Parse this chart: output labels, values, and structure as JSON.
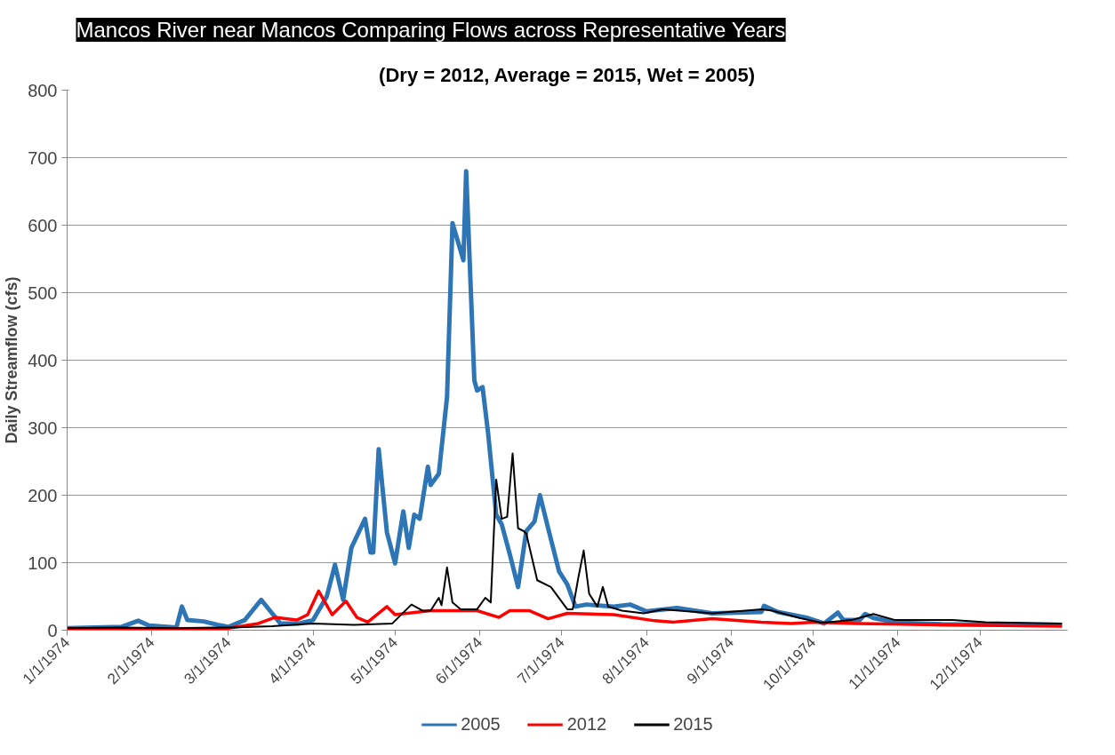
{
  "chart_data": {
    "type": "line",
    "title": "Mancos River near Mancos Comparing Flows across Representative Years",
    "subtitle": "(Dry = 2012, Average = 2015, Wet = 2005)",
    "ylabel": "Daily Streamflow (cfs)",
    "xlim": [
      "1974-01-01",
      "1975-01-02"
    ],
    "ylim": [
      0,
      800
    ],
    "yticks": [
      0,
      100,
      200,
      300,
      400,
      500,
      600,
      700,
      800
    ],
    "xticks": [
      {
        "value": "1974-01-01",
        "label": "1/1/1974"
      },
      {
        "value": "1974-02-01",
        "label": "2/1/1974"
      },
      {
        "value": "1974-03-01",
        "label": "3/1/1974"
      },
      {
        "value": "1974-04-01",
        "label": "4/1/1974"
      },
      {
        "value": "1974-05-01",
        "label": "5/1/1974"
      },
      {
        "value": "1974-06-01",
        "label": "6/1/1974"
      },
      {
        "value": "1974-07-01",
        "label": "7/1/1974"
      },
      {
        "value": "1974-08-01",
        "label": "8/1/1974"
      },
      {
        "value": "1974-09-01",
        "label": "9/1/1974"
      },
      {
        "value": "1974-10-01",
        "label": "10/1/1974"
      },
      {
        "value": "1974-11-01",
        "label": "11/1/1974"
      },
      {
        "value": "1974-12-01",
        "label": "12/1/1974"
      }
    ],
    "grid": "y",
    "legend": "bottom",
    "marker": "none",
    "line_style": "solid",
    "series": [
      {
        "name": "2005",
        "color": "#2e75b6",
        "x": [
          "1974-01-01",
          "1974-01-11",
          "1974-01-21",
          "1974-01-27",
          "1974-01-31",
          "1974-02-10",
          "1974-02-12",
          "1974-02-14",
          "1974-02-20",
          "1974-02-25",
          "1974-03-01",
          "1974-03-07",
          "1974-03-13",
          "1974-03-17",
          "1974-03-20",
          "1974-03-27",
          "1974-04-01",
          "1974-04-06",
          "1974-04-09",
          "1974-04-12",
          "1974-04-15",
          "1974-04-20",
          "1974-04-22",
          "1974-04-23",
          "1974-04-25",
          "1974-04-28",
          "1974-05-01",
          "1974-05-04",
          "1974-05-06",
          "1974-05-08",
          "1974-05-10",
          "1974-05-13",
          "1974-05-14",
          "1974-05-17",
          "1974-05-20",
          "1974-05-22",
          "1974-05-26",
          "1974-05-27",
          "1974-05-30",
          "1974-05-31",
          "1974-06-02",
          "1974-06-04",
          "1974-06-07",
          "1974-06-09",
          "1974-06-12",
          "1974-06-15",
          "1974-06-18",
          "1974-06-21",
          "1974-06-23",
          "1974-06-26",
          "1974-06-30",
          "1974-07-03",
          "1974-07-06",
          "1974-07-10",
          "1974-07-20",
          "1974-07-26",
          "1974-08-01",
          "1974-08-12",
          "1974-08-25",
          "1974-09-12",
          "1974-09-13",
          "1974-09-18",
          "1974-09-29",
          "1974-10-05",
          "1974-10-10",
          "1974-10-12",
          "1974-10-18",
          "1974-10-20",
          "1974-10-23",
          "1974-11-01",
          "1974-11-17",
          "1974-12-31"
        ],
        "values": [
          3,
          4,
          5,
          14,
          7,
          4,
          35,
          15,
          13,
          8,
          5,
          15,
          45,
          25,
          10,
          10,
          15,
          50,
          97,
          45,
          122,
          165,
          115,
          115,
          268,
          145,
          99,
          176,
          122,
          171,
          165,
          242,
          215,
          232,
          345,
          603,
          548,
          680,
          370,
          355,
          360,
          293,
          171,
          157,
          112,
          64,
          147,
          161,
          200,
          151,
          87,
          68,
          35,
          38,
          35,
          38,
          28,
          33,
          25,
          27,
          36,
          27,
          18,
          10,
          26,
          15,
          15,
          24,
          18,
          11,
          9,
          8
        ]
      },
      {
        "name": "2012",
        "color": "#ff0000",
        "x": [
          "1974-01-01",
          "1974-01-31",
          "1974-03-01",
          "1974-03-12",
          "1974-03-18",
          "1974-03-26",
          "1974-03-30",
          "1974-04-03",
          "1974-04-08",
          "1974-04-13",
          "1974-04-17",
          "1974-04-21",
          "1974-04-28",
          "1974-05-01",
          "1974-05-14",
          "1974-05-31",
          "1974-06-08",
          "1974-06-12",
          "1974-06-19",
          "1974-06-26",
          "1974-07-03",
          "1974-07-20",
          "1974-08-04",
          "1974-08-11",
          "1974-08-25",
          "1974-09-12",
          "1974-09-23",
          "1974-10-01",
          "1974-10-17",
          "1974-11-17",
          "1974-12-31"
        ],
        "values": [
          2,
          2,
          3,
          10,
          19,
          15,
          23,
          58,
          23,
          43,
          19,
          12,
          35,
          23,
          29,
          29,
          19,
          29,
          29,
          17,
          25,
          23,
          14,
          12,
          17,
          12,
          10,
          12,
          10,
          8,
          6
        ]
      },
      {
        "name": "2015",
        "color": "#000000",
        "x": [
          "1974-01-01",
          "1974-01-21",
          "1974-02-10",
          "1974-03-02",
          "1974-03-17",
          "1974-04-01",
          "1974-04-16",
          "1974-04-30",
          "1974-05-07",
          "1974-05-11",
          "1974-05-14",
          "1974-05-17",
          "1974-05-18",
          "1974-05-20",
          "1974-05-22",
          "1974-05-25",
          "1974-05-31",
          "1974-06-03",
          "1974-06-05",
          "1974-06-07",
          "1974-06-09",
          "1974-06-11",
          "1974-06-13",
          "1974-06-15",
          "1974-06-17",
          "1974-06-18",
          "1974-06-22",
          "1974-06-27",
          "1974-07-03",
          "1974-07-05",
          "1974-07-07",
          "1974-07-09",
          "1974-07-11",
          "1974-07-14",
          "1974-07-16",
          "1974-07-18",
          "1974-07-23",
          "1974-07-31",
          "1974-08-07",
          "1974-08-13",
          "1974-08-25",
          "1974-09-12",
          "1974-09-16",
          "1974-09-26",
          "1974-10-04",
          "1974-10-15",
          "1974-10-23",
          "1974-10-31",
          "1974-11-21",
          "1974-12-03",
          "1974-12-31"
        ],
        "values": [
          3,
          4,
          3,
          4,
          6,
          10,
          8,
          10,
          38,
          29,
          29,
          48,
          37,
          93,
          41,
          31,
          31,
          48,
          41,
          223,
          165,
          168,
          262,
          151,
          147,
          143,
          74,
          64,
          31,
          31,
          77,
          118,
          54,
          35,
          64,
          35,
          29,
          25,
          31,
          29,
          25,
          31,
          29,
          18,
          11,
          15,
          24,
          15,
          15,
          12,
          10
        ]
      }
    ]
  }
}
